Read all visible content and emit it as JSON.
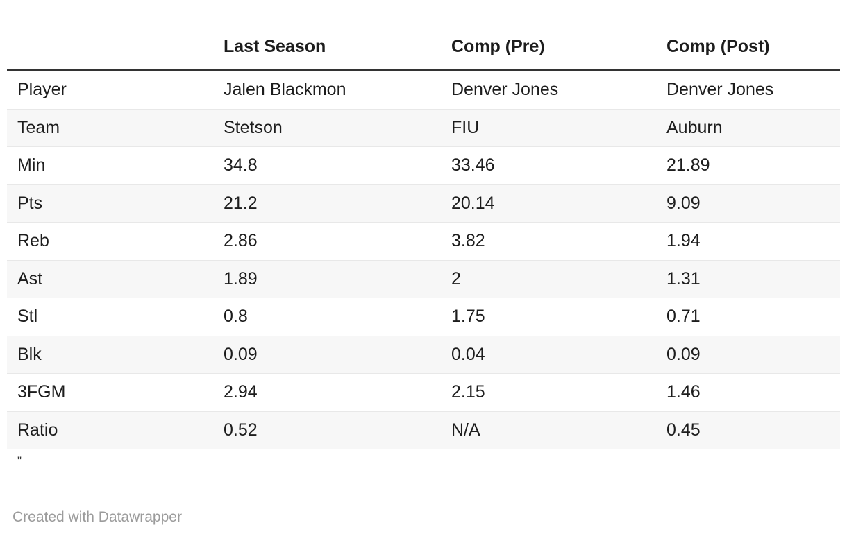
{
  "chart_data": {
    "type": "table",
    "columns": [
      "",
      "Last Season",
      "Comp (Pre)",
      "Comp (Post)"
    ],
    "rows": [
      {
        "label": "Player",
        "values": [
          "Jalen Blackmon",
          "Denver Jones",
          "Denver Jones"
        ]
      },
      {
        "label": "Team",
        "values": [
          "Stetson",
          "FIU",
          "Auburn"
        ]
      },
      {
        "label": "Min",
        "values": [
          "34.8",
          "33.46",
          "21.89"
        ]
      },
      {
        "label": "Pts",
        "values": [
          "21.2",
          "20.14",
          "9.09"
        ]
      },
      {
        "label": "Reb",
        "values": [
          "2.86",
          "3.82",
          "1.94"
        ]
      },
      {
        "label": "Ast",
        "values": [
          "1.89",
          "2",
          "1.31"
        ]
      },
      {
        "label": "Stl",
        "values": [
          "0.8",
          "1.75",
          "0.71"
        ]
      },
      {
        "label": "Blk",
        "values": [
          "0.09",
          "0.04",
          "0.09"
        ]
      },
      {
        "label": "3FGM",
        "values": [
          "2.94",
          "2.15",
          "1.46"
        ]
      },
      {
        "label": "Ratio",
        "values": [
          "0.52",
          "N/A",
          "0.45"
        ]
      }
    ],
    "notes": "\"",
    "layout_hints": {
      "striped_rows": "even rows shaded",
      "header_rule": "thick dark rule under header"
    }
  },
  "footer": {
    "attribution": "Created with Datawrapper"
  },
  "colors": {
    "text": "#1d1d1d",
    "header_rule": "#333333",
    "row_divider": "#e8e8e8",
    "stripe": "#f7f7f7",
    "attribution_text": "#9b9b9b",
    "background": "#ffffff"
  }
}
